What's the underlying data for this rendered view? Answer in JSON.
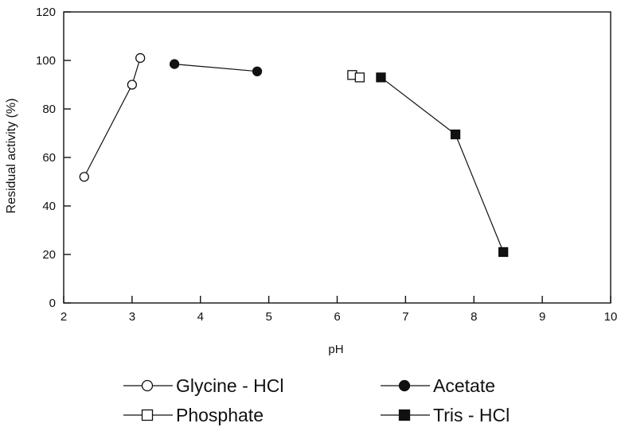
{
  "chart_data": {
    "type": "scatter",
    "title": "",
    "xlabel": "pH",
    "ylabel": "Residual activity (%)",
    "xlim": [
      2,
      10
    ],
    "ylim": [
      0,
      120
    ],
    "xticks": [
      "2",
      "3",
      "4",
      "5",
      "6",
      "7",
      "8",
      "9",
      "10"
    ],
    "yticks": [
      "0",
      "20",
      "40",
      "60",
      "80",
      "100",
      "120"
    ],
    "grid": false,
    "legend_position": "bottom",
    "series": [
      {
        "name": "Glycine - HCl",
        "marker": "circle",
        "filled": false,
        "connected": true,
        "points": [
          [
            2.3,
            52
          ],
          [
            3.0,
            90
          ],
          [
            3.12,
            101
          ]
        ]
      },
      {
        "name": "Acetate",
        "marker": "circle",
        "filled": true,
        "connected": true,
        "points": [
          [
            3.62,
            98.5
          ],
          [
            4.83,
            95.5
          ]
        ]
      },
      {
        "name": "Phosphate",
        "marker": "square",
        "filled": false,
        "connected": false,
        "points": [
          [
            6.22,
            94
          ],
          [
            6.33,
            93
          ]
        ]
      },
      {
        "name": "Tris - HCl",
        "marker": "square",
        "filled": true,
        "connected": true,
        "points": [
          [
            6.64,
            93
          ],
          [
            7.73,
            69.5
          ],
          [
            8.43,
            21
          ]
        ]
      }
    ],
    "colors": {
      "axis": "#111111",
      "marker": "#111111",
      "fill_open": "#ffffff"
    }
  }
}
